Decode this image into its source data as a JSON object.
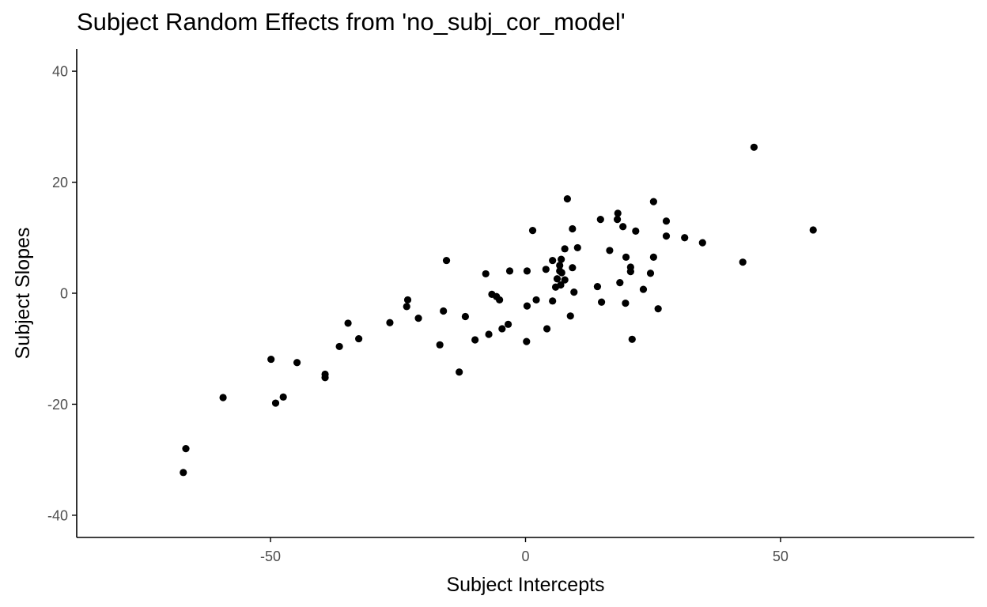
{
  "chart_data": {
    "type": "scatter",
    "title": "Subject Random Effects from 'no_subj_cor_model'",
    "xlabel": "Subject Intercepts",
    "ylabel": "Subject Slopes",
    "xlim": [
      -88,
      88
    ],
    "ylim": [
      -44,
      44
    ],
    "xticks": [
      -50,
      0,
      50
    ],
    "yticks": [
      -40,
      -20,
      0,
      20,
      40
    ],
    "xtick_labels": [
      "-50",
      "0",
      "50"
    ],
    "ytick_labels": [
      "-40",
      "-20",
      "0",
      "20",
      "40"
    ],
    "grid": false,
    "legend": "none",
    "point_color": "#000000",
    "axis_color": "#000000",
    "tick_label_color": "#4d4d4d",
    "points": [
      {
        "x": 44.8,
        "y": 26.3
      },
      {
        "x": 56.4,
        "y": 11.4
      },
      {
        "x": 42.6,
        "y": 5.6
      },
      {
        "x": 34.7,
        "y": 9.1
      },
      {
        "x": 31.2,
        "y": 10.0
      },
      {
        "x": 27.6,
        "y": 13.0
      },
      {
        "x": 27.6,
        "y": 10.3
      },
      {
        "x": 25.1,
        "y": 16.5
      },
      {
        "x": 25.1,
        "y": 6.5
      },
      {
        "x": 24.5,
        "y": 3.6
      },
      {
        "x": 26.0,
        "y": -2.8
      },
      {
        "x": 23.1,
        "y": 0.7
      },
      {
        "x": 21.6,
        "y": 11.2
      },
      {
        "x": 20.6,
        "y": 4.7
      },
      {
        "x": 20.6,
        "y": 3.9
      },
      {
        "x": 20.9,
        "y": -8.3
      },
      {
        "x": 19.7,
        "y": 6.5
      },
      {
        "x": 19.1,
        "y": 12.0
      },
      {
        "x": 18.1,
        "y": 14.4
      },
      {
        "x": 18.0,
        "y": 13.3
      },
      {
        "x": 18.5,
        "y": 1.9
      },
      {
        "x": 19.6,
        "y": -1.8
      },
      {
        "x": 16.5,
        "y": 7.7
      },
      {
        "x": 14.7,
        "y": 13.3
      },
      {
        "x": 14.9,
        "y": -1.6
      },
      {
        "x": 14.1,
        "y": 1.2
      },
      {
        "x": 10.2,
        "y": 8.2
      },
      {
        "x": 9.2,
        "y": 11.6
      },
      {
        "x": 8.2,
        "y": 17.0
      },
      {
        "x": 9.2,
        "y": 4.6
      },
      {
        "x": 9.5,
        "y": 0.2
      },
      {
        "x": 8.8,
        "y": -4.1
      },
      {
        "x": 7.7,
        "y": 8.0
      },
      {
        "x": 7.7,
        "y": 2.4
      },
      {
        "x": 7.0,
        "y": 6.1
      },
      {
        "x": 6.7,
        "y": 5.0
      },
      {
        "x": 6.7,
        "y": 4.0
      },
      {
        "x": 6.9,
        "y": 1.5
      },
      {
        "x": 7.1,
        "y": 3.7
      },
      {
        "x": 6.2,
        "y": 2.6
      },
      {
        "x": 5.3,
        "y": 5.9
      },
      {
        "x": 5.9,
        "y": 1.1
      },
      {
        "x": 5.3,
        "y": -1.4
      },
      {
        "x": 4.0,
        "y": 4.3
      },
      {
        "x": 4.2,
        "y": -6.4
      },
      {
        "x": 1.4,
        "y": 11.3
      },
      {
        "x": 2.1,
        "y": -1.2
      },
      {
        "x": 0.3,
        "y": 4.0
      },
      {
        "x": 0.3,
        "y": -2.3
      },
      {
        "x": 0.2,
        "y": -8.7
      },
      {
        "x": -3.1,
        "y": 4.0
      },
      {
        "x": -3.4,
        "y": -5.6
      },
      {
        "x": -4.6,
        "y": -6.4
      },
      {
        "x": -5.1,
        "y": -1.2
      },
      {
        "x": -5.7,
        "y": -0.6
      },
      {
        "x": -6.6,
        "y": -0.2
      },
      {
        "x": -7.2,
        "y": -7.4
      },
      {
        "x": -7.8,
        "y": 3.5
      },
      {
        "x": -9.9,
        "y": -8.4
      },
      {
        "x": -11.8,
        "y": -4.2
      },
      {
        "x": -13.0,
        "y": -14.2
      },
      {
        "x": -15.5,
        "y": 5.9
      },
      {
        "x": -16.1,
        "y": -3.2
      },
      {
        "x": -16.8,
        "y": -9.3
      },
      {
        "x": -21.0,
        "y": -4.5
      },
      {
        "x": -23.1,
        "y": -1.2
      },
      {
        "x": -23.3,
        "y": -2.4
      },
      {
        "x": -26.6,
        "y": -5.3
      },
      {
        "x": -32.7,
        "y": -8.2
      },
      {
        "x": -34.8,
        "y": -5.4
      },
      {
        "x": -36.5,
        "y": -9.6
      },
      {
        "x": -39.3,
        "y": -14.6
      },
      {
        "x": -39.3,
        "y": -15.2
      },
      {
        "x": -44.8,
        "y": -12.5
      },
      {
        "x": -47.5,
        "y": -18.7
      },
      {
        "x": -49.0,
        "y": -19.8
      },
      {
        "x": -49.9,
        "y": -11.9
      },
      {
        "x": -59.3,
        "y": -18.8
      },
      {
        "x": -66.6,
        "y": -28.0
      },
      {
        "x": -67.1,
        "y": -32.3
      }
    ]
  }
}
